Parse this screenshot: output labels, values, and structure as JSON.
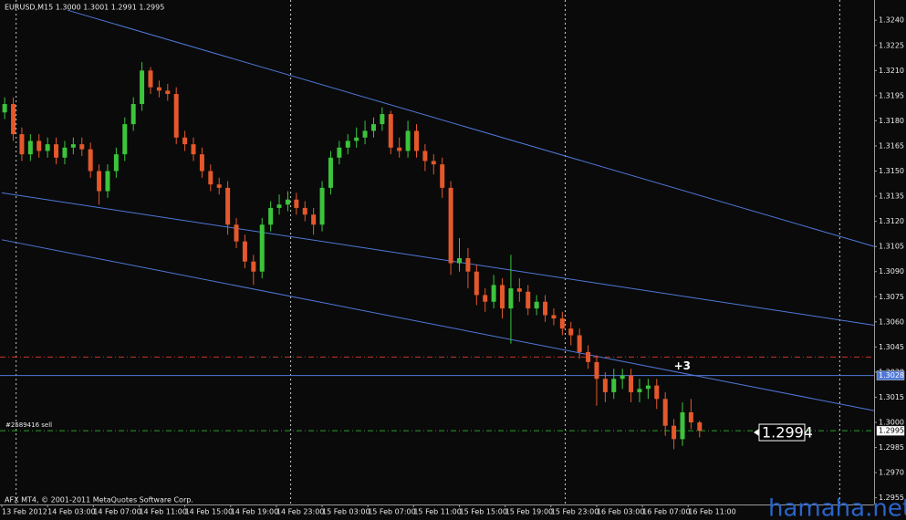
{
  "chart_data": {
    "type": "candlestick",
    "title": "EURUSD,M15  1.3000 1.3001 1.2991 1.2995",
    "copyright": "AFX MT4, © 2001-2011 MetaQuotes Software Corp.",
    "watermark": "hamaha.net",
    "up_color": "#3cc43c",
    "down_color": "#e4582c",
    "x": [
      1,
      4,
      7,
      10,
      13,
      16,
      19,
      22,
      25,
      28,
      31,
      34,
      37,
      40,
      43,
      46,
      49,
      52,
      55,
      58,
      61,
      64,
      67,
      70,
      73,
      76,
      79,
      82,
      85,
      88,
      91,
      94,
      97,
      100,
      103,
      106,
      109,
      112,
      115,
      118,
      121,
      124,
      127,
      130,
      133,
      136,
      139,
      142,
      145,
      148,
      151,
      154,
      157,
      160,
      163,
      166,
      169,
      172,
      175,
      178,
      181,
      184,
      187,
      190,
      193,
      196,
      199,
      202,
      205,
      208,
      211,
      214,
      217,
      220,
      223,
      226,
      229,
      232,
      235,
      238,
      241,
      244
    ],
    "open": [
      1.3185,
      1.319,
      1.3172,
      1.316,
      1.3168,
      1.3162,
      1.3166,
      1.3158,
      1.3164,
      1.3166,
      1.3163,
      1.315,
      1.3138,
      1.315,
      1.316,
      1.3178,
      1.319,
      1.321,
      1.32,
      1.3198,
      1.3196,
      1.317,
      1.3166,
      1.316,
      1.315,
      1.3142,
      1.314,
      1.3118,
      1.3108,
      1.3096,
      1.309,
      1.3118,
      1.3128,
      1.313,
      1.3133,
      1.3128,
      1.3124,
      1.3118,
      1.314,
      1.3158,
      1.3164,
      1.3168,
      1.317,
      1.3174,
      1.3178,
      1.3184,
      1.3164,
      1.3162,
      1.3174,
      1.3162,
      1.3156,
      1.3154,
      1.314,
      1.3095,
      1.3098,
      1.309,
      1.3076,
      1.3072,
      1.3082,
      1.3068,
      1.308,
      1.3078,
      1.3068,
      1.3072,
      1.3064,
      1.3062,
      1.3056,
      1.3052,
      1.3042,
      1.3036,
      1.3026,
      1.3018,
      1.3026,
      1.3028,
      1.3018,
      1.302,
      1.3022,
      1.3014,
      1.2998,
      1.299,
      1.3006,
      1.3
    ],
    "high": [
      1.3194,
      1.3194,
      1.3176,
      1.3172,
      1.3172,
      1.317,
      1.317,
      1.3168,
      1.317,
      1.317,
      1.3167,
      1.3154,
      1.3154,
      1.3164,
      1.3182,
      1.3194,
      1.3215,
      1.3212,
      1.3204,
      1.3202,
      1.32,
      1.3174,
      1.317,
      1.3164,
      1.3154,
      1.3146,
      1.3144,
      1.3122,
      1.3112,
      1.31,
      1.3122,
      1.3132,
      1.3136,
      1.3138,
      1.3137,
      1.3132,
      1.3128,
      1.3144,
      1.3162,
      1.3168,
      1.3172,
      1.3176,
      1.318,
      1.3182,
      1.3188,
      1.3186,
      1.317,
      1.318,
      1.3178,
      1.3166,
      1.316,
      1.3158,
      1.3144,
      1.311,
      1.3104,
      1.3094,
      1.308,
      1.3088,
      1.3086,
      1.31,
      1.3086,
      1.3082,
      1.3076,
      1.3076,
      1.3068,
      1.3066,
      1.306,
      1.3056,
      1.3046,
      1.304,
      1.303,
      1.3032,
      1.3032,
      1.3032,
      1.3026,
      1.3026,
      1.3026,
      1.3018,
      1.3002,
      1.3012,
      1.3014,
      1.3001
    ],
    "low": [
      1.3181,
      1.3168,
      1.3156,
      1.3156,
      1.3158,
      1.3158,
      1.3154,
      1.3154,
      1.316,
      1.3159,
      1.3146,
      1.313,
      1.3134,
      1.3146,
      1.3156,
      1.3174,
      1.3186,
      1.3196,
      1.3194,
      1.3192,
      1.3166,
      1.3162,
      1.3156,
      1.3146,
      1.3138,
      1.3136,
      1.3112,
      1.3104,
      1.3092,
      1.3082,
      1.3086,
      1.3114,
      1.3124,
      1.3126,
      1.3124,
      1.312,
      1.3112,
      1.3114,
      1.3136,
      1.3154,
      1.316,
      1.3164,
      1.3166,
      1.317,
      1.3174,
      1.316,
      1.3158,
      1.3158,
      1.3158,
      1.315,
      1.3148,
      1.3134,
      1.3088,
      1.309,
      1.308,
      1.307,
      1.3066,
      1.3068,
      1.3062,
      1.3047,
      1.3072,
      1.3064,
      1.3064,
      1.306,
      1.3058,
      1.3052,
      1.3046,
      1.3038,
      1.3032,
      1.301,
      1.3012,
      1.3014,
      1.302,
      1.3012,
      1.3012,
      1.3014,
      1.3008,
      1.2992,
      1.2984,
      1.2986,
      1.2996,
      1.2991
    ],
    "close": [
      1.319,
      1.3172,
      1.316,
      1.3168,
      1.3162,
      1.3166,
      1.3158,
      1.3164,
      1.3166,
      1.3163,
      1.315,
      1.3138,
      1.315,
      1.316,
      1.3178,
      1.319,
      1.321,
      1.32,
      1.3198,
      1.3196,
      1.317,
      1.3166,
      1.316,
      1.315,
      1.3142,
      1.314,
      1.3118,
      1.3108,
      1.3096,
      1.309,
      1.3118,
      1.3128,
      1.313,
      1.3133,
      1.3128,
      1.3124,
      1.3118,
      1.314,
      1.3158,
      1.3164,
      1.3168,
      1.317,
      1.3174,
      1.3178,
      1.3184,
      1.3164,
      1.3162,
      1.3174,
      1.3162,
      1.3156,
      1.3154,
      1.314,
      1.3095,
      1.3098,
      1.309,
      1.3076,
      1.3072,
      1.3082,
      1.3068,
      1.308,
      1.3078,
      1.3068,
      1.3072,
      1.3064,
      1.3062,
      1.3056,
      1.3052,
      1.3042,
      1.3036,
      1.3026,
      1.3018,
      1.3026,
      1.3028,
      1.3018,
      1.302,
      1.3022,
      1.3014,
      1.2998,
      1.299,
      1.3006,
      1.3,
      1.2995
    ],
    "xlim": [
      0,
      305
    ],
    "ylim": [
      1.2951,
      1.3251
    ],
    "yticks": [
      {
        "value": 1.324,
        "label": "1.3240"
      },
      1.3225,
      {
        "value": 1.321,
        "label": "1.3210"
      },
      1.3195,
      {
        "value": 1.318,
        "label": "1.3180"
      },
      1.3165,
      {
        "value": 1.315,
        "label": "1.3150"
      },
      1.3135,
      {
        "value": 1.312,
        "label": "1.3120"
      },
      1.3105,
      {
        "value": 1.309,
        "label": "1.3090"
      },
      1.3075,
      {
        "value": 1.306,
        "label": "1.3060"
      },
      1.3045,
      {
        "value": 1.303,
        "label": "1.3030"
      },
      1.3015,
      {
        "value": 1.3,
        "label": "1.3000"
      },
      1.2985,
      {
        "value": 1.297,
        "label": "1.2970"
      },
      1.2955
    ],
    "xticks": [
      {
        "value": 0,
        "label": "13 Feb 2012"
      },
      {
        "value": 16,
        "label": "14 Feb 03:00"
      },
      {
        "value": 32,
        "label": "14 Feb 07:00"
      },
      {
        "value": 48,
        "label": "14 Feb 11:00"
      },
      {
        "value": 64,
        "label": "14 Feb 15:00"
      },
      {
        "value": 80,
        "label": "14 Feb 19:00"
      },
      {
        "value": 96,
        "label": "14 Feb 23:00"
      },
      {
        "value": 112,
        "label": "15 Feb 03:00"
      },
      {
        "value": 128,
        "label": "15 Feb 07:00"
      },
      {
        "value": 144,
        "label": "15 Feb 11:00"
      },
      {
        "value": 160,
        "label": "15 Feb 15:00"
      },
      {
        "value": 176,
        "label": "15 Feb 19:00"
      },
      {
        "value": 192,
        "label": "15 Feb 23:00"
      },
      {
        "value": 208,
        "label": "16 Feb 03:00"
      },
      {
        "value": 224,
        "label": "16 Feb 07:00"
      },
      {
        "value": 240,
        "label": "16 Feb 11:00"
      }
    ],
    "xgrid": [
      5,
      101,
      197,
      293
    ],
    "trendlines": [
      {
        "color": "#4f78d8",
        "x": [
          23,
          305
        ],
        "y": [
          1.3246,
          1.3105
        ]
      },
      {
        "color": "#4f78d8",
        "x": [
          0,
          305
        ],
        "y": [
          1.3137,
          1.3058
        ]
      },
      {
        "color": "#4f78d8",
        "x": [
          0,
          305
        ],
        "y": [
          1.3109,
          1.3007
        ]
      }
    ],
    "hlines": [
      {
        "value": 1.3039,
        "color": "#c8342a",
        "style": "dashdot"
      },
      {
        "value": 1.3028,
        "color": "#4f78d8",
        "style": "solid"
      },
      {
        "value": 1.2995,
        "color": "#2e9e2e",
        "style": "dashdot",
        "text": "#2589416 sell"
      }
    ],
    "profit_label": {
      "text": "+3",
      "x": 235,
      "y": 1.3027
    },
    "bid": 1.2994
  }
}
